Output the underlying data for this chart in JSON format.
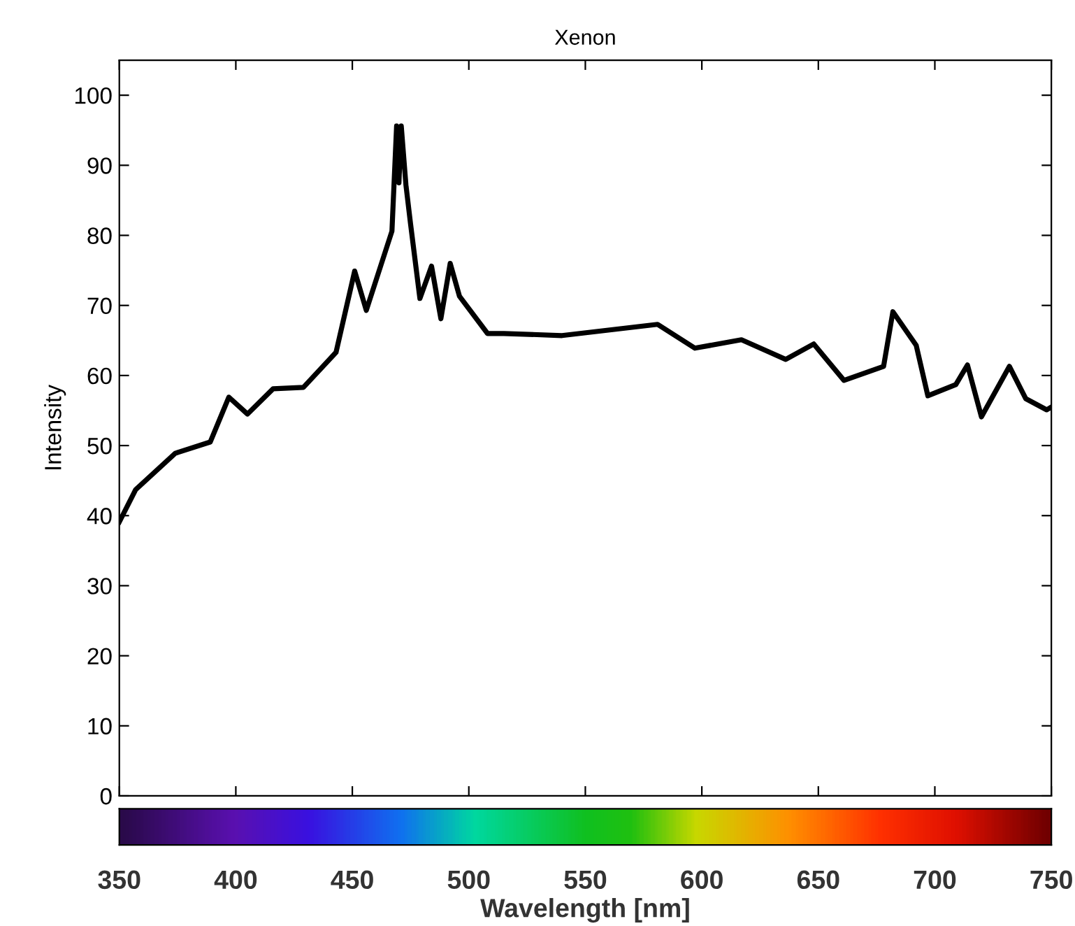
{
  "chart_data": {
    "type": "line",
    "title": "Xenon",
    "xlabel": "Wavelength [nm]",
    "ylabel": "Intensity",
    "x": [
      350,
      357,
      374,
      389,
      397,
      405,
      416,
      429,
      443,
      451,
      456,
      467,
      469,
      470,
      471,
      473,
      475,
      479,
      484,
      488,
      492,
      496,
      508,
      515,
      540,
      581,
      597,
      617,
      636,
      648,
      661,
      678,
      682,
      692,
      697,
      709,
      714,
      720,
      732,
      739,
      748,
      750
    ],
    "series": [
      {
        "color": "#000000",
        "values": [
          39.1,
          43.7,
          48.9,
          50.5,
          56.9,
          54.5,
          58.1,
          58.3,
          63.3,
          74.9,
          69.3,
          80.6,
          95.6,
          87.5,
          95.6,
          87.2,
          81.6,
          71,
          75.6,
          68.1,
          76,
          71.3,
          66,
          66,
          65.7,
          67.3,
          63.9,
          65.1,
          62.3,
          64.5,
          59.3,
          61.3,
          69.1,
          64.3,
          57.1,
          58.7,
          61.5,
          54.1,
          61.3,
          56.7,
          55.1,
          55.5
        ]
      }
    ],
    "xlim": [
      350,
      750
    ],
    "xticks": [
      350,
      400,
      450,
      500,
      550,
      600,
      650,
      700,
      750
    ],
    "ylim": [
      0,
      105
    ],
    "yticks": [
      0,
      10,
      20,
      30,
      40,
      50,
      60,
      70,
      80,
      90,
      100
    ],
    "grid": false,
    "legend": false,
    "marker": "none",
    "line_style": "solid"
  }
}
